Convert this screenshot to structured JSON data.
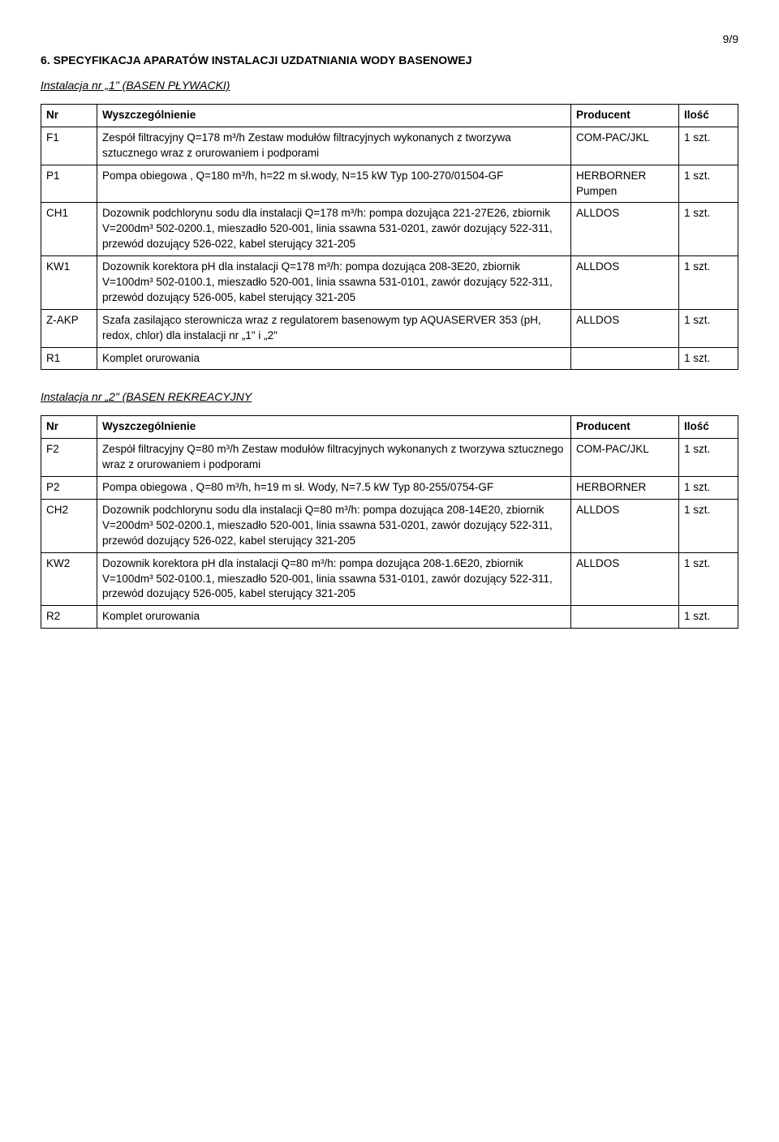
{
  "page_number": "9/9",
  "section_title": "6. SPECYFIKACJA APARATÓW INSTALACJI  UZDATNIANIA WODY BASENOWEJ",
  "install1_label": "Instalacja nr „1\" (BASEN PŁYWACKI)",
  "install2_label": "Instalacja nr „2\" (BASEN REKREACYJNY",
  "headers": {
    "nr": "Nr",
    "desc": "Wyszczególnienie",
    "producer": "Producent",
    "qty": "Ilość"
  },
  "t1": {
    "r0": {
      "nr": "F1",
      "desc": "Zespół filtracyjny Q=178 m³/h\nZestaw modułów filtracyjnych\nwykonanych z tworzywa sztucznego wraz  z orurowaniem i podporami",
      "producer": "COM-PAC/JKL",
      "qty": "1 szt."
    },
    "r1": {
      "nr": "P1",
      "desc": "Pompa obiegowa , Q=180 m³/h, h=22 m sł.wody,  N=15 kW\nTyp 100-270/01504-GF",
      "producer": "HERBORNER Pumpen",
      "qty": "1 szt."
    },
    "r2": {
      "nr": "CH1",
      "desc": "Dozownik podchlorynu sodu dla instalacji Q=178 m³/h:\npompa dozująca 221-27E26, zbiornik V=200dm³  502-0200.1, mieszadło 520-001, linia ssawna 531-0201, zawór dozujący 522-311, przewód dozujący 526-022, kabel sterujący 321-205",
      "producer": "ALLDOS",
      "qty": "1 szt."
    },
    "r3": {
      "nr": "KW1",
      "desc": "Dozownik korektora pH dla instalacji Q=178 m³/h:\npompa dozująca 208-3E20, zbiornik V=100dm³  502-0100.1, mieszadło 520-001, linia ssawna 531-0101, zawór dozujący 522-311, przewód dozujący 526-005, kabel sterujący 321-205",
      "producer": "ALLDOS",
      "qty": "1 szt."
    },
    "r4": {
      "nr": "Z-AKP",
      "desc": "Szafa zasilająco sterownicza wraz z regulatorem basenowym  typ AQUASERVER 353  (pH, redox, chlor)\ndla instalacji  nr „1\" i  „2\"",
      "producer": "ALLDOS",
      "qty": "1 szt."
    },
    "r5": {
      "nr": "R1",
      "desc": "Komplet orurowania",
      "producer": "",
      "qty": "1 szt."
    }
  },
  "t2": {
    "r0": {
      "nr": "F2",
      "desc": "Zespół filtracyjny Q=80 m³/h\nZestaw modułów filtracyjnych\nwykonanych z tworzywa sztucznego wraz  z orurowaniem i podporami",
      "producer": "COM-PAC/JKL",
      "qty": "1 szt."
    },
    "r1": {
      "nr": "P2",
      "desc": "Pompa obiegowa , Q=80 m³/h, h=19 m sł. Wody, N=7.5 kW\nTyp 80-255/0754-GF",
      "producer": "HERBORNER",
      "qty": "1 szt."
    },
    "r2": {
      "nr": "CH2",
      "desc": "Dozownik podchlorynu sodu dla instalacji Q=80 m³/h:\npompa dozująca 208-14E20, zbiornik V=200dm³  502-0200.1, mieszadło 520-001, linia ssawna 531-0201, zawór dozujący 522-311, przewód dozujący 526-022, kabel sterujący 321-205",
      "producer": "ALLDOS",
      "qty": "1 szt."
    },
    "r3": {
      "nr": "KW2",
      "desc": "Dozownik korektora pH dla instalacji Q=80 m³/h:\npompa dozująca 208-1.6E20, zbiornik V=100dm³  502-0100.1, mieszadło 520-001, linia ssawna 531-0101, zawór dozujący 522-311, przewód dozujący 526-005, kabel sterujący 321-205",
      "producer": "ALLDOS",
      "qty": "1 szt."
    },
    "r4": {
      "nr": "R2",
      "desc": "Komplet orurowania",
      "producer": "",
      "qty": "1 szt."
    }
  }
}
